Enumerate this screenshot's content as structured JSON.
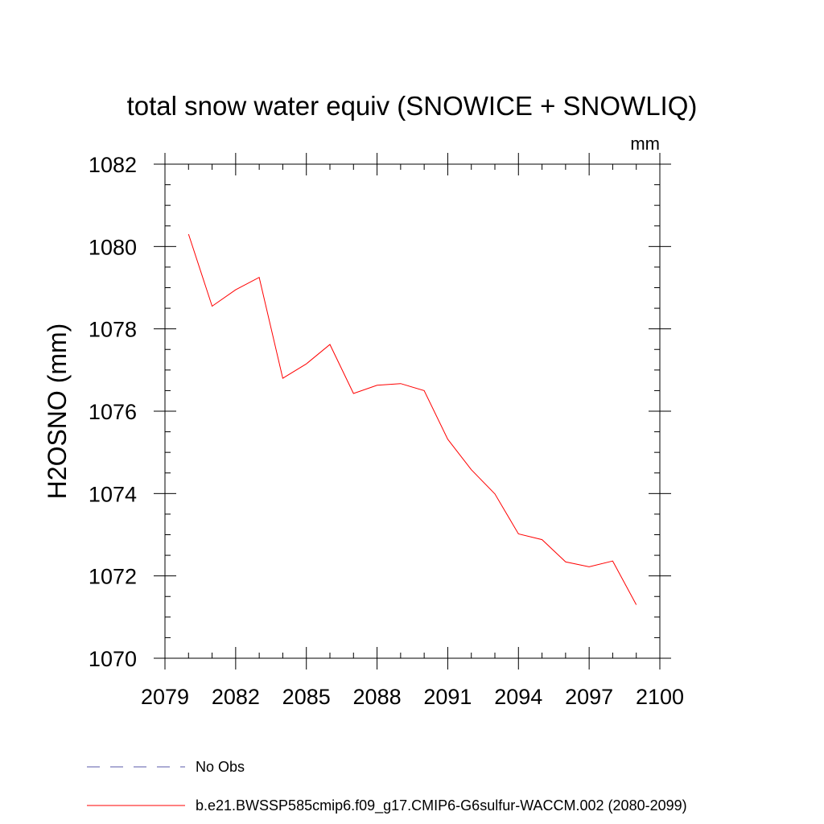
{
  "chart_data": {
    "type": "line",
    "title": "total snow water equiv (SNOWICE + SNOWLIQ)",
    "units_label": "mm",
    "xlabel": "",
    "ylabel": "H2OSNO  (mm)",
    "xlim": [
      2079,
      2100
    ],
    "ylim": [
      1070,
      1082
    ],
    "x_ticks": [
      2079,
      2082,
      2085,
      2088,
      2091,
      2094,
      2097,
      2100
    ],
    "x_tick_labels": [
      "2079",
      "2082",
      "2085",
      "2088",
      "2091",
      "2094",
      "2097",
      "2100"
    ],
    "y_ticks": [
      1070,
      1072,
      1074,
      1076,
      1078,
      1080,
      1082
    ],
    "y_tick_labels": [
      "1070",
      "1072",
      "1074",
      "1076",
      "1078",
      "1080",
      "1082"
    ],
    "grid": false,
    "legend_position": "bottom-left",
    "legend": [
      {
        "label": "No Obs",
        "color": "#5a5aa8",
        "style": "dashed"
      },
      {
        "label": "b.e21.BWSSP585cmip6.f09_g17.CMIP6-G6sulfur-WACCM.002 (2080-2099)",
        "color": "#ff0000",
        "style": "solid"
      }
    ],
    "series": [
      {
        "color": "#ff0000",
        "x": [
          2080,
          2081,
          2082,
          2083,
          2084,
          2085,
          2086,
          2087,
          2088,
          2089,
          2090,
          2091,
          2092,
          2093,
          2094,
          2095,
          2096,
          2097,
          2098,
          2099
        ],
        "y": [
          1080.3,
          1078.55,
          1078.95,
          1079.25,
          1076.8,
          1077.15,
          1077.62,
          1076.43,
          1076.63,
          1076.67,
          1076.5,
          1075.32,
          1074.58,
          1073.99,
          1073.02,
          1072.88,
          1072.34,
          1072.22,
          1072.36,
          1071.3
        ]
      }
    ]
  }
}
